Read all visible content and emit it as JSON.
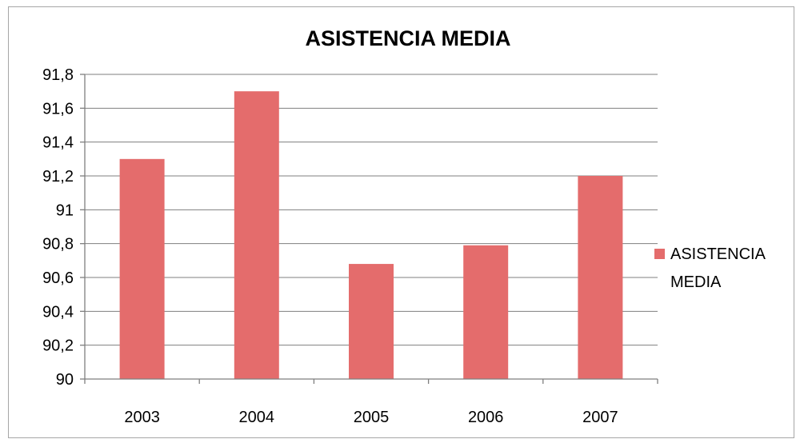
{
  "chart_data": {
    "type": "bar",
    "title": "ASISTENCIA MEDIA",
    "categories": [
      "2003",
      "2004",
      "2005",
      "2006",
      "2007"
    ],
    "series": [
      {
        "name": "ASISTENCIA MEDIA",
        "values": [
          91.3,
          91.7,
          90.68,
          90.79,
          91.2
        ]
      }
    ],
    "xlabel": "",
    "ylabel": "",
    "ylim": [
      90,
      91.8
    ],
    "ytick_labels": [
      "90",
      "90,2",
      "90,4",
      "90,6",
      "90,8",
      "91",
      "91,2",
      "91,4",
      "91,6",
      "91,8"
    ],
    "grid": true,
    "legend": {
      "placement": "right",
      "lines": [
        "ASISTENCIA",
        "MEDIA"
      ]
    },
    "colors": {
      "bar": "#e46c6c",
      "grid": "#7f7f7f",
      "border": "#a6a6a6"
    }
  }
}
